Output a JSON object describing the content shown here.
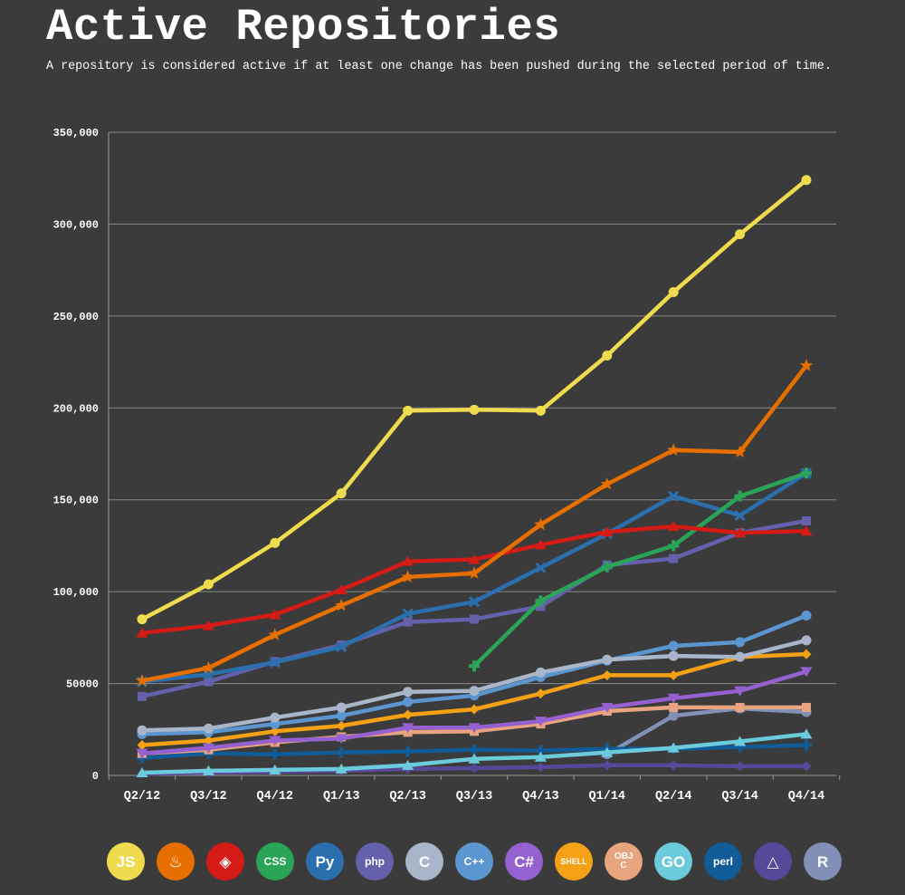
{
  "header": {
    "title": "Active Repositories",
    "subtitle": "A repository is considered active if at least one change has been pushed during the selected period of time."
  },
  "chart_data": {
    "type": "line",
    "title": "Active Repositories",
    "subtitle": "A repository is considered active if at least one change has been pushed during the selected period of time.",
    "xlabel": "",
    "ylabel": "",
    "categories": [
      "Q2/12",
      "Q3/12",
      "Q4/12",
      "Q1/13",
      "Q2/13",
      "Q3/13",
      "Q4/13",
      "Q1/14",
      "Q2/14",
      "Q3/14",
      "Q4/14"
    ],
    "ylim": [
      0,
      350000
    ],
    "yticks": [
      0,
      50000,
      100000,
      150000,
      200000,
      250000,
      300000,
      350000
    ],
    "ytick_labels": [
      "0",
      "50000",
      "100,000",
      "150,000",
      "200,000",
      "250,000",
      "300,000",
      "350,000"
    ],
    "grid": "horizontal",
    "legend": "icons below chart",
    "series": [
      {
        "icon": "javascript-icon",
        "color": "#f0db4f",
        "marker": "circle",
        "values": [
          85000,
          104000,
          126500,
          153500,
          198500,
          199000,
          198500,
          228500,
          263000,
          294500,
          324000
        ]
      },
      {
        "icon": "java-icon",
        "color": "#e76f00",
        "marker": "star",
        "values": [
          51500,
          58500,
          76500,
          92500,
          108000,
          110000,
          136500,
          158500,
          177000,
          176000,
          223000
        ]
      },
      {
        "icon": "ruby-icon",
        "color": "#d41b15",
        "marker": "triangle",
        "values": [
          77500,
          81500,
          87500,
          101000,
          116500,
          117500,
          125500,
          132500,
          135500,
          132000,
          133000
        ]
      },
      {
        "icon": "css-icon",
        "color": "#2aa456",
        "marker": "cross",
        "values": [
          null,
          null,
          null,
          null,
          null,
          59500,
          95000,
          113500,
          125000,
          152000,
          164500
        ]
      },
      {
        "icon": "python-icon",
        "color": "#2b6fae",
        "marker": "x",
        "values": [
          51000,
          55000,
          61500,
          70000,
          88000,
          94500,
          113000,
          131500,
          152000,
          141500,
          164500
        ]
      },
      {
        "icon": "php-icon",
        "color": "#6560ab",
        "marker": "square",
        "values": [
          43000,
          51000,
          62000,
          71000,
          83500,
          85000,
          92000,
          114500,
          118000,
          132000,
          138500
        ]
      },
      {
        "icon": "c-icon",
        "color": "#a9b6c9",
        "marker": "circle",
        "values": [
          24500,
          25500,
          31500,
          37000,
          45500,
          46000,
          56000,
          63000,
          65000,
          64500,
          73500
        ]
      },
      {
        "icon": "cpp-icon",
        "color": "#5b96d1",
        "marker": "circle",
        "values": [
          22500,
          23500,
          28000,
          32500,
          40000,
          43500,
          53500,
          62500,
          70500,
          72500,
          87000
        ]
      },
      {
        "icon": "csharp-icon",
        "color": "#9561d0",
        "marker": "triangle-down",
        "values": [
          12000,
          15000,
          19000,
          20000,
          26000,
          26000,
          29500,
          37000,
          42000,
          46000,
          56500
        ]
      },
      {
        "icon": "shell-icon",
        "color": "#f4a116",
        "marker": "diamond",
        "values": [
          16500,
          19000,
          24000,
          27000,
          33000,
          36000,
          44500,
          54500,
          54500,
          64500,
          66000
        ]
      },
      {
        "icon": "objective-c-icon",
        "color": "#e8a47f",
        "marker": "square",
        "values": [
          12000,
          14000,
          18000,
          21000,
          23500,
          24000,
          28000,
          35000,
          37000,
          37000,
          37000
        ]
      },
      {
        "icon": "go-icon",
        "color": "#6ccbdb",
        "marker": "triangle",
        "values": [
          1500,
          2500,
          3000,
          3500,
          5500,
          9000,
          10000,
          12500,
          15000,
          18500,
          22500
        ]
      },
      {
        "icon": "perl-icon",
        "color": "#0f5c99",
        "marker": "cross",
        "values": [
          9500,
          12000,
          11500,
          12500,
          13000,
          14000,
          13500,
          14500,
          14500,
          15500,
          16500
        ]
      },
      {
        "icon": "scala-icon",
        "color": "#57489a",
        "marker": "diamond",
        "values": [
          900,
          1500,
          2000,
          2500,
          3500,
          4000,
          4500,
          5500,
          5500,
          5000,
          5000
        ]
      },
      {
        "icon": "r-icon",
        "color": "#8290b8",
        "marker": "circle",
        "values": [
          null,
          null,
          null,
          null,
          null,
          null,
          null,
          11500,
          32500,
          36500,
          34500
        ]
      }
    ]
  },
  "legend": [
    {
      "name": "javascript-icon",
      "text": "JS",
      "bg": "#f0db4f",
      "fg": "#ffffff"
    },
    {
      "name": "java-icon",
      "text": "♨",
      "bg": "#e76f00",
      "fg": "#ffffff"
    },
    {
      "name": "ruby-icon",
      "text": "◈",
      "bg": "#d41b15",
      "fg": "#ffffff"
    },
    {
      "name": "css-icon",
      "text": "CSS",
      "bg": "#2aa456",
      "fg": "#ffffff"
    },
    {
      "name": "python-icon",
      "text": "Py",
      "bg": "#2b6fae",
      "fg": "#ffffff"
    },
    {
      "name": "php-icon",
      "text": "php",
      "bg": "#6560ab",
      "fg": "#ffffff"
    },
    {
      "name": "c-icon",
      "text": "C",
      "bg": "#a9b6c9",
      "fg": "#ffffff"
    },
    {
      "name": "cpp-icon",
      "text": "C++",
      "bg": "#5b96d1",
      "fg": "#ffffff"
    },
    {
      "name": "csharp-icon",
      "text": "C#",
      "bg": "#9561d0",
      "fg": "#ffffff"
    },
    {
      "name": "shell-icon",
      "text": "SHELL",
      "bg": "#f4a116",
      "fg": "#ffffff"
    },
    {
      "name": "objective-c-icon",
      "text": "OBJ C",
      "bg": "#e8a47f",
      "fg": "#ffffff"
    },
    {
      "name": "go-icon",
      "text": "GO",
      "bg": "#6ccbdb",
      "fg": "#ffffff"
    },
    {
      "name": "perl-icon",
      "text": "perl",
      "bg": "#0f5c99",
      "fg": "#ffffff"
    },
    {
      "name": "scala-icon",
      "text": "△",
      "bg": "#57489a",
      "fg": "#ffffff"
    },
    {
      "name": "r-icon",
      "text": "R",
      "bg": "#8290b8",
      "fg": "#ffffff"
    }
  ]
}
